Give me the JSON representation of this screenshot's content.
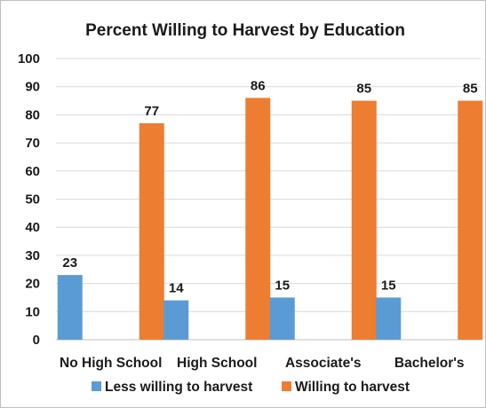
{
  "chart_data": {
    "type": "bar",
    "title": "Percent Willing to Harvest by Education",
    "xlabel": "",
    "ylabel": "",
    "ylim": [
      0,
      100
    ],
    "yticks": [
      0,
      10,
      20,
      30,
      40,
      50,
      60,
      70,
      80,
      90,
      100
    ],
    "grid": true,
    "legend_position": "bottom",
    "categories": [
      "No High School",
      "High School",
      "Associate's",
      "Bachelor's"
    ],
    "series": [
      {
        "name": "Less willing to harvest",
        "color": "#5b9bd5",
        "values": [
          23,
          14,
          15,
          15
        ],
        "labels": [
          "23",
          "14",
          "15",
          "15"
        ]
      },
      {
        "name": "Willing to harvest",
        "color": "#ed7d31",
        "values": [
          77,
          86,
          85,
          85
        ],
        "labels": [
          "77",
          "86",
          "85",
          "85"
        ]
      }
    ]
  }
}
